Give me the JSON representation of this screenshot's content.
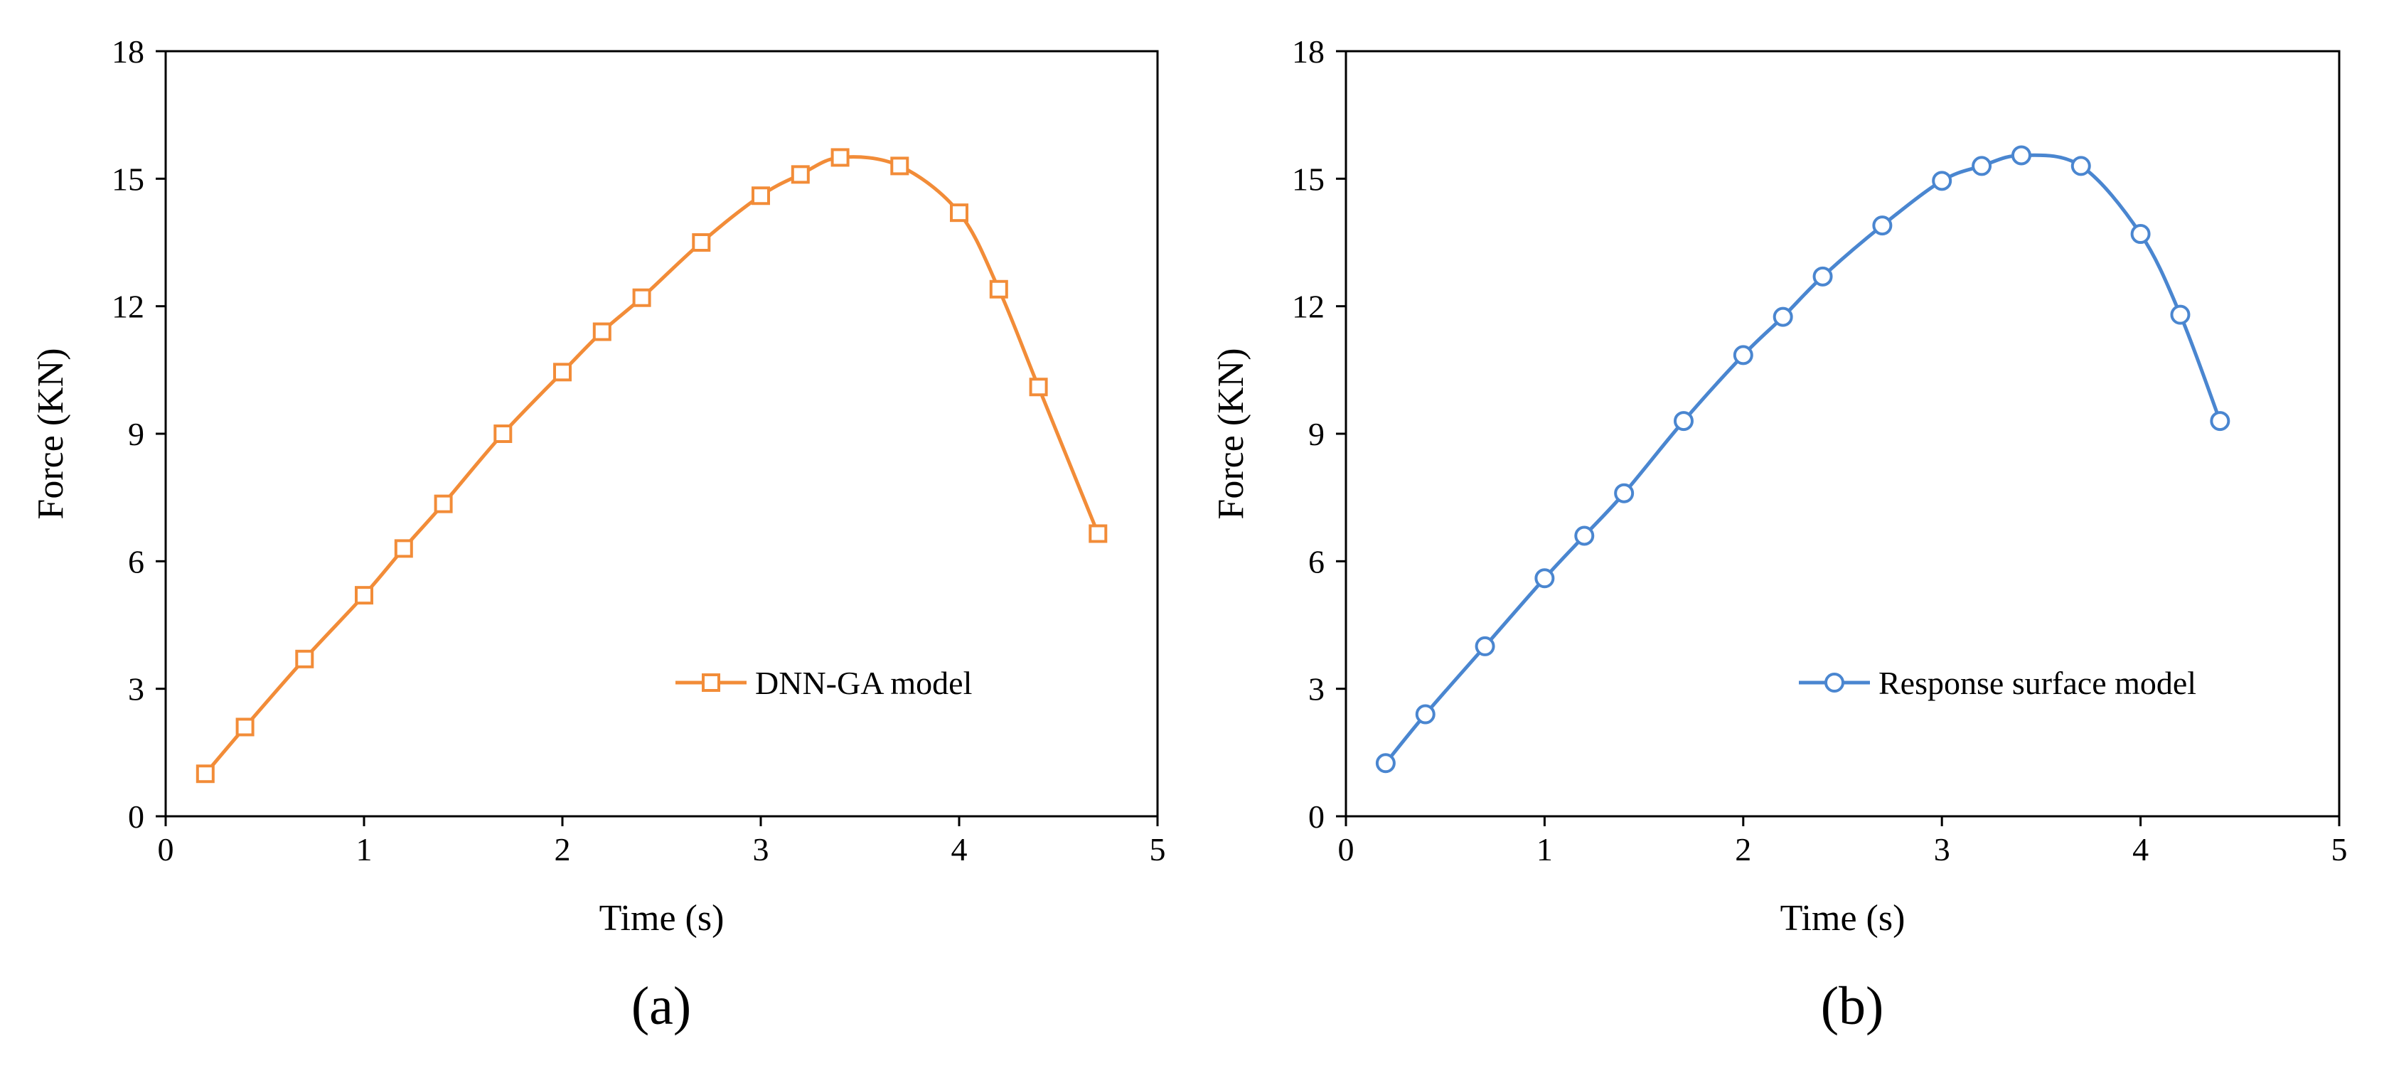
{
  "chart_data": [
    {
      "type": "line",
      "panel_label": "(a)",
      "title": "",
      "xlabel": "Time (s)",
      "ylabel": "Force (KN)",
      "xlim": [
        0,
        5
      ],
      "ylim": [
        0,
        18
      ],
      "xticks": [
        "0",
        "1",
        "2",
        "3",
        "4",
        "5"
      ],
      "yticks": [
        "0",
        "3",
        "6",
        "9",
        "12",
        "15",
        "18"
      ],
      "grid": false,
      "legend_position": "bottom-right",
      "series": [
        {
          "name": "DNN-GA model",
          "color": "#F28C38",
          "marker": "square",
          "x": [
            0.2,
            0.4,
            0.7,
            1.0,
            1.2,
            1.4,
            1.7,
            2.0,
            2.2,
            2.4,
            2.7,
            3.0,
            3.2,
            3.4,
            3.7,
            4.0,
            4.2,
            4.4,
            4.7
          ],
          "y": [
            1.0,
            2.1,
            3.7,
            5.2,
            6.3,
            7.35,
            9.0,
            10.45,
            11.4,
            12.2,
            13.5,
            14.6,
            15.1,
            15.5,
            15.3,
            14.2,
            12.4,
            10.1,
            6.65
          ]
        }
      ]
    },
    {
      "type": "line",
      "panel_label": "(b)",
      "title": "",
      "xlabel": "Time (s)",
      "ylabel": "Force (KN)",
      "xlim": [
        0,
        5
      ],
      "ylim": [
        0,
        18
      ],
      "xticks": [
        "0",
        "1",
        "2",
        "3",
        "4",
        "5"
      ],
      "yticks": [
        "0",
        "3",
        "6",
        "9",
        "12",
        "15",
        "18"
      ],
      "grid": false,
      "legend_position": "bottom-right",
      "series": [
        {
          "name": "Response surface model",
          "color": "#4A86D0",
          "marker": "circle",
          "x": [
            0.2,
            0.4,
            0.7,
            1.0,
            1.2,
            1.4,
            1.7,
            2.0,
            2.2,
            2.4,
            2.7,
            3.0,
            3.2,
            3.4,
            3.7,
            4.0,
            4.2,
            4.4
          ],
          "y": [
            1.25,
            2.4,
            4.0,
            5.6,
            6.6,
            7.6,
            9.3,
            10.85,
            11.75,
            12.7,
            13.9,
            14.95,
            15.3,
            15.55,
            15.3,
            13.7,
            11.8,
            9.3
          ]
        }
      ]
    }
  ]
}
